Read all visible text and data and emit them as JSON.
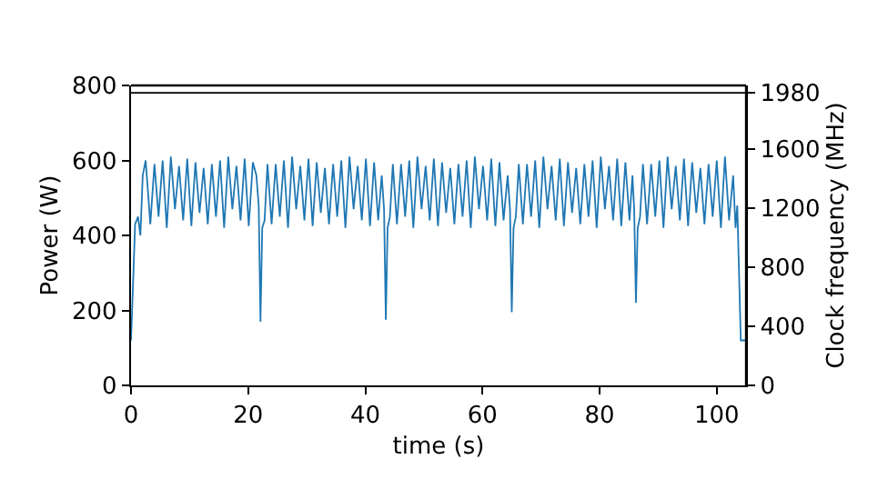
{
  "chart_data": {
    "type": "line",
    "xlabel": "time (s)",
    "ylabel": "Power (W)",
    "y2label": "Clock frequency (MHz)",
    "xlim": [
      0,
      105
    ],
    "xticks": [
      0,
      20,
      40,
      60,
      80,
      100
    ],
    "ylim": [
      0,
      800
    ],
    "yticks": [
      0,
      200,
      400,
      600,
      800
    ],
    "y2lim": [
      0,
      2030
    ],
    "y2ticks": [
      0,
      400,
      800,
      1200,
      1600,
      1980
    ],
    "marker": "none",
    "line_style": "solid",
    "series": [
      {
        "color": "#1f77b4",
        "axis": "y",
        "x": [
          0,
          0.3,
          0.7,
          1.2,
          1.6,
          2,
          2.5,
          3.3,
          4.0,
          4.7,
          5.4,
          6.1,
          6.8,
          7.5,
          8.2,
          8.9,
          9.6,
          10.3,
          11.0,
          11.7,
          12.4,
          13.1,
          13.8,
          14.5,
          15.2,
          15.9,
          16.6,
          17.3,
          18.0,
          18.7,
          19.4,
          20.1,
          20.8,
          21.4,
          21.8,
          22.1,
          22.4,
          22.8,
          23.3,
          24.0,
          24.7,
          25.4,
          26.1,
          26.8,
          27.5,
          28.2,
          28.9,
          29.6,
          30.3,
          31.0,
          31.7,
          32.4,
          33.1,
          33.8,
          34.5,
          35.2,
          35.9,
          36.6,
          37.3,
          38.0,
          38.7,
          39.4,
          40.1,
          40.8,
          41.5,
          42.2,
          42.8,
          43.2,
          43.5,
          43.8,
          44.2,
          44.7,
          45.4,
          46.1,
          46.8,
          47.5,
          48.2,
          48.9,
          49.6,
          50.3,
          51.0,
          51.7,
          52.4,
          53.1,
          53.8,
          54.5,
          55.2,
          55.9,
          56.6,
          57.3,
          58.0,
          58.7,
          59.4,
          60.1,
          60.8,
          61.5,
          62.2,
          62.9,
          63.6,
          64.3,
          64.7,
          65.0,
          65.3,
          65.7,
          66.2,
          66.9,
          67.6,
          68.3,
          69.0,
          69.7,
          70.4,
          71.1,
          71.8,
          72.5,
          73.2,
          73.9,
          74.6,
          75.3,
          76.0,
          76.7,
          77.4,
          78.1,
          78.8,
          79.5,
          80.2,
          80.9,
          81.6,
          82.3,
          83.0,
          83.7,
          84.4,
          85.1,
          85.6,
          85.9,
          86.2,
          86.5,
          86.9,
          87.4,
          88.1,
          88.8,
          89.5,
          90.2,
          90.9,
          91.6,
          92.3,
          93.0,
          93.7,
          94.4,
          95.1,
          95.8,
          96.5,
          97.2,
          97.9,
          98.6,
          99.3,
          100.0,
          100.7,
          101.4,
          102.1,
          102.8,
          103.2,
          103.5,
          103.8,
          104.1,
          105
        ],
        "values": [
          120,
          250,
          430,
          450,
          400,
          560,
          600,
          430,
          590,
          450,
          600,
          420,
          610,
          470,
          585,
          440,
          605,
          425,
          595,
          460,
          580,
          430,
          590,
          450,
          600,
          420,
          610,
          470,
          585,
          440,
          605,
          425,
          595,
          560,
          480,
          170,
          420,
          440,
          590,
          430,
          590,
          450,
          600,
          420,
          610,
          470,
          585,
          440,
          605,
          425,
          595,
          460,
          580,
          430,
          590,
          450,
          600,
          420,
          610,
          470,
          585,
          440,
          605,
          425,
          595,
          440,
          560,
          470,
          175,
          420,
          450,
          590,
          430,
          590,
          450,
          600,
          420,
          610,
          470,
          585,
          440,
          605,
          425,
          595,
          460,
          580,
          430,
          590,
          450,
          600,
          420,
          610,
          470,
          585,
          440,
          605,
          425,
          595,
          440,
          560,
          470,
          195,
          420,
          450,
          590,
          430,
          590,
          450,
          600,
          420,
          610,
          470,
          585,
          440,
          605,
          425,
          595,
          460,
          580,
          430,
          590,
          450,
          600,
          420,
          610,
          470,
          585,
          440,
          605,
          425,
          595,
          440,
          560,
          470,
          220,
          420,
          450,
          590,
          430,
          590,
          450,
          600,
          420,
          610,
          470,
          585,
          440,
          605,
          425,
          595,
          460,
          580,
          430,
          590,
          450,
          600,
          420,
          610,
          440,
          560,
          420,
          480,
          300,
          120,
          120
        ]
      },
      {
        "color": "#000000",
        "axis": "y2",
        "x": [
          0,
          105
        ],
        "values": [
          1980,
          1980
        ]
      }
    ]
  }
}
